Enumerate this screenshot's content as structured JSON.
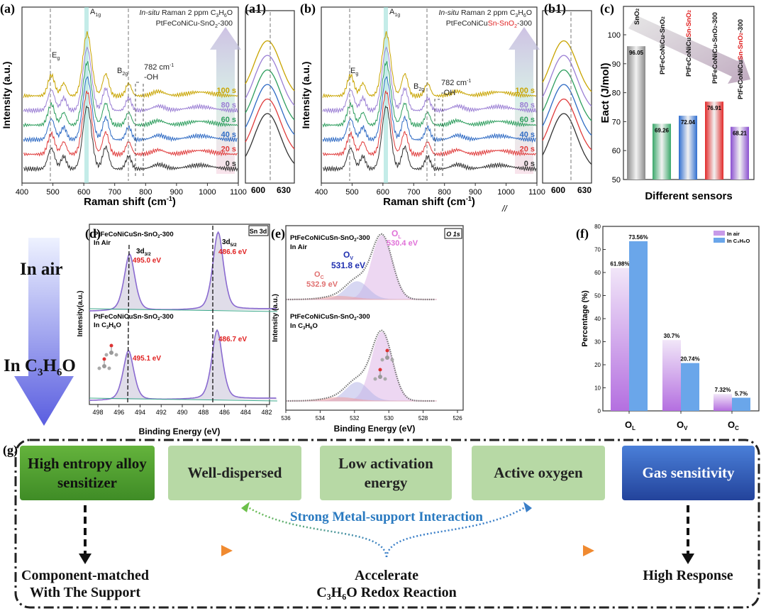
{
  "panels": {
    "a": {
      "label": "(a)",
      "title1_italic": "In-situ",
      "title1_rest": " Raman 2 ppm C",
      "title1_sub3": "3",
      "title1_h": "H",
      "title1_sub6": "6",
      "title1_o": "O",
      "sample": "PtFeCoNiCu-SnO",
      "sample_sub": "2",
      "sample_tail": "-300"
    },
    "a1": {
      "label": "(a1)"
    },
    "b": {
      "label": "(b)",
      "sample_black": "PtFeCoNiCu",
      "sample_red": "Sn-SnO",
      "sample_sub": "2",
      "sample_tail": "-300"
    },
    "b1": {
      "label": "(b1)"
    },
    "c": {
      "label": "(c)"
    },
    "d": {
      "label": "(d)",
      "badge": "Sn 3d",
      "sample_top": "PtFeCoNiCuSn-SnO",
      "sample_sub": "2",
      "sample_tail": "-300",
      "cond_top": "In Air",
      "cond_bottom": "In C",
      "cond_bottom_sub3": "3",
      "cond_bottom_h": "H",
      "cond_bottom_sub6": "6",
      "cond_bottom_o": "O",
      "peak_32": "3d",
      "peak_32_sub": "3/2",
      "peak_52": "3d",
      "peak_52_sub": "5/2",
      "e1": "495.0 eV",
      "e2": "486.6 eV",
      "e3": "495.1 eV",
      "e4": "486.7 eV",
      "xlabel": "Binding Energy (eV)",
      "ylabel": "Intensity(a.u.)"
    },
    "e": {
      "label": "(e)",
      "badge": "O 1s",
      "ol": "O",
      "ol_sub": "L",
      "ol_val": "530.4 eV",
      "ov": "O",
      "ov_sub": "V",
      "ov_val": "531.8 eV",
      "oc": "O",
      "oc_sub": "C",
      "oc_val": "532.9 eV",
      "xlabel": "Binding Energy (eV)",
      "ylabel": "Intensity (a.u.)"
    },
    "f": {
      "label": "(f)"
    },
    "g": {
      "label": "(g)"
    }
  },
  "raman": {
    "xlabel": "Raman shift (cm",
    "xlabel_sup": "-1",
    "xlabel_end": ")",
    "ylabel": "Intensity (a.u.)",
    "xticks": [
      "400",
      "500",
      "600",
      "700",
      "800",
      "900",
      "1000",
      "1100"
    ],
    "inset_ticks": [
      "600",
      "630"
    ],
    "peak_eg": "E",
    "peak_eg_sub": "g",
    "peak_a1g": "A",
    "peak_a1g_sub": "1g",
    "peak_b2g": "B",
    "peak_b2g_sub": "2g",
    "oh_line1": "782 cm",
    "oh_sup": "-1",
    "oh_line2": "-OH",
    "break_mark": "//",
    "series": [
      {
        "label": "0 s",
        "color": "#333333"
      },
      {
        "label": "20 s",
        "color": "#e03c3c"
      },
      {
        "label": "40 s",
        "color": "#2f6bc4"
      },
      {
        "label": "60 s",
        "color": "#2e9e5e"
      },
      {
        "label": "80 s",
        "color": "#9b7fd4"
      },
      {
        "label": "100 s",
        "color": "#c8a400"
      }
    ]
  },
  "xps_d_ticks": [
    "498",
    "496",
    "494",
    "492",
    "490",
    "488",
    "486",
    "484",
    "482"
  ],
  "xps_e_ticks": [
    "536",
    "534",
    "532",
    "530",
    "528",
    "526"
  ],
  "side_arrow": {
    "top": "In air",
    "bottom": "In C",
    "sub3": "3",
    "h": "H",
    "sub6": "6",
    "o": "O"
  },
  "scheme": {
    "box1": "High entropy alloy sensitizer",
    "box2": "Well-dispersed",
    "box3": "Low activation energy",
    "box4": "Active oxygen",
    "box5": "Gas sensitivity",
    "center": "Strong Metal-support Interaction",
    "bottom1": "Component-matched With The Support",
    "bottom2_line1": "Accelerate",
    "bottom2_line2": "C₃H₆O Redox Reaction",
    "bottom3": "High Response"
  },
  "chart_data": [
    {
      "type": "bar",
      "panel": "c",
      "categories": [
        "SnO2",
        "PtFeCoNiCu-SnO2",
        "PtFeCoNiCuSn-SnO2",
        "PtFeCoNiCu-SnO2-300",
        "PtFeCoNiCuSn-SnO2-300"
      ],
      "values": [
        96.05,
        69.26,
        72.04,
        76.91,
        68.21
      ],
      "labels": [
        "96.05",
        "69.26",
        "72.04",
        "76.91",
        "68.21"
      ],
      "colors": [
        "#8a8a8a",
        "#3aa86a",
        "#2f6ed0",
        "#e22a2a",
        "#8a4fd0"
      ],
      "xlabel": "Different sensors",
      "ylabel": "Eact (J/mol)",
      "ylim": [
        50,
        105
      ],
      "yticks": [
        "50",
        "60",
        "70",
        "80",
        "90",
        "100"
      ]
    },
    {
      "type": "bar",
      "panel": "f",
      "categories": [
        "OL",
        "OV",
        "OC"
      ],
      "series": [
        {
          "name": "In air",
          "values": [
            61.98,
            30.7,
            7.32
          ],
          "labels": [
            "61.98%",
            "30.7%",
            "7.32%"
          ],
          "color": "#b46fe0"
        },
        {
          "name": "In C3H6O",
          "values": [
            73.56,
            20.74,
            5.7
          ],
          "labels": [
            "73.56%",
            "20.74%",
            "5.7%"
          ],
          "color": "#5b9be6"
        }
      ],
      "legend": [
        "In air",
        "In C₃H₆O"
      ],
      "xlabel": "",
      "ylabel": "Percentage (%)",
      "ylim": [
        0,
        80
      ],
      "yticks": [
        "0",
        "10",
        "20",
        "30",
        "40",
        "50",
        "60",
        "70",
        "80"
      ],
      "legend_position": "top-right"
    }
  ]
}
